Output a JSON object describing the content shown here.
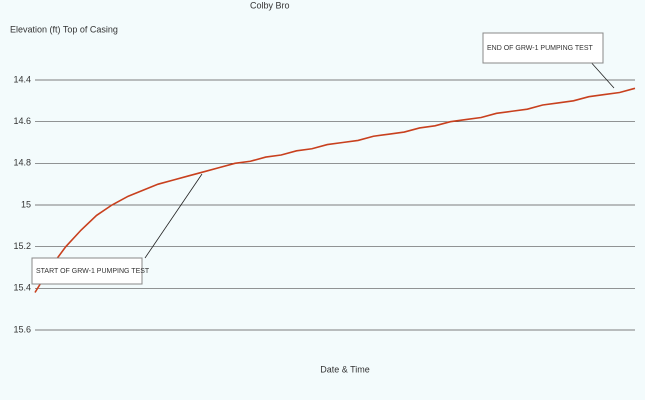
{
  "chart_data": {
    "type": "line",
    "title": "Colby Bro",
    "y_label": "Elevation (ft) Top of Casing",
    "x_label": "Date & Time",
    "categories": [
      null,
      null,
      null,
      null,
      null,
      null,
      null,
      null,
      null,
      null,
      null,
      null,
      null,
      null,
      null,
      null,
      null,
      null,
      null,
      null,
      null,
      null,
      null,
      null,
      null,
      null,
      null,
      null,
      null,
      null,
      null,
      null,
      null,
      null,
      null,
      null,
      null,
      null,
      null,
      null
    ],
    "series": [
      {
        "name": "GRW-1",
        "color": "#c8401e",
        "values": [
          15.42,
          15.3,
          15.2,
          15.12,
          15.05,
          15.0,
          14.96,
          14.93,
          14.9,
          14.88,
          14.86,
          14.84,
          14.82,
          14.8,
          14.79,
          14.77,
          14.76,
          14.74,
          14.73,
          14.71,
          14.7,
          14.69,
          14.67,
          14.66,
          14.65,
          14.63,
          14.62,
          14.6,
          14.59,
          14.58,
          14.56,
          14.55,
          14.54,
          14.52,
          14.51,
          14.5,
          14.48,
          14.47,
          14.46,
          14.44
        ]
      }
    ],
    "ylim": [
      15.6,
      14.4
    ],
    "yticks": [
      15.6,
      15.4,
      15.2,
      15,
      14.8,
      14.6,
      14.4
    ],
    "grid": true,
    "annotations": [
      "START OF GRW-1 PUMPING TEST",
      "END OF GRW-1 PUMPING TEST"
    ]
  }
}
